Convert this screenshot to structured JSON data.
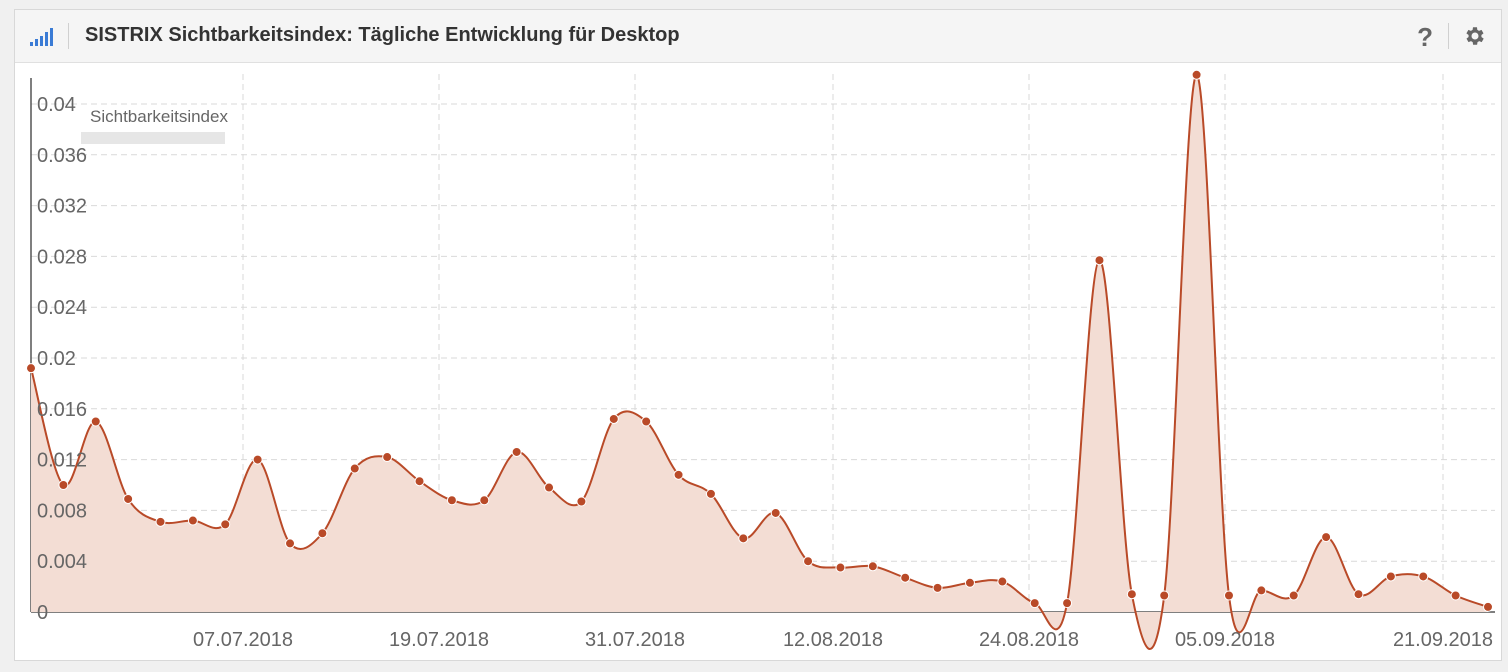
{
  "header": {
    "title": "SISTRIX Sichtbarkeitsindex: Tägliche Entwicklung für Desktop",
    "help_label": "?",
    "icons": [
      "signal-bars-icon",
      "help-icon",
      "gear-icon"
    ]
  },
  "colors": {
    "accent": "#3a7bd5",
    "series_line": "#b94a28",
    "series_fill": "#f3ddd4",
    "grid": "#d9d9d9"
  },
  "chart_data": {
    "type": "area",
    "title": "SISTRIX Sichtbarkeitsindex: Tägliche Entwicklung für Desktop",
    "xlabel": "",
    "ylabel": "",
    "legend": {
      "title": "Sichtbarkeitsindex",
      "placement": "top-left"
    },
    "grid": true,
    "ylim": [
      0,
      0.04
    ],
    "x_tick_labels": [
      "07.07.2018",
      "19.07.2018",
      "31.07.2018",
      "12.08.2018",
      "24.08.2018",
      "05.09.2018",
      "21.09.2018"
    ],
    "y_tick_labels": [
      "0",
      "0.004",
      "0.008",
      "0.012",
      "0.016",
      "0.02",
      "0.024",
      "0.028",
      "0.032",
      "0.036",
      "0.04"
    ],
    "series": [
      {
        "values": [
          0.0192,
          0.01,
          0.015,
          0.0089,
          0.0071,
          0.0072,
          0.0069,
          0.012,
          0.0054,
          0.0062,
          0.0113,
          0.0122,
          0.0103,
          0.0088,
          0.0088,
          0.0126,
          0.0098,
          0.0087,
          0.0152,
          0.015,
          0.0108,
          0.0093,
          0.0058,
          0.0078,
          0.004,
          0.0035,
          0.0036,
          0.0027,
          0.0019,
          0.0023,
          0.0024,
          0.0007,
          0.0007,
          0.0277,
          0.0014,
          0.0013,
          0.0423,
          0.0013,
          0.0017,
          0.0013,
          0.0059,
          0.0014,
          0.0028,
          0.0028,
          0.0013,
          0.0004
        ]
      }
    ]
  }
}
